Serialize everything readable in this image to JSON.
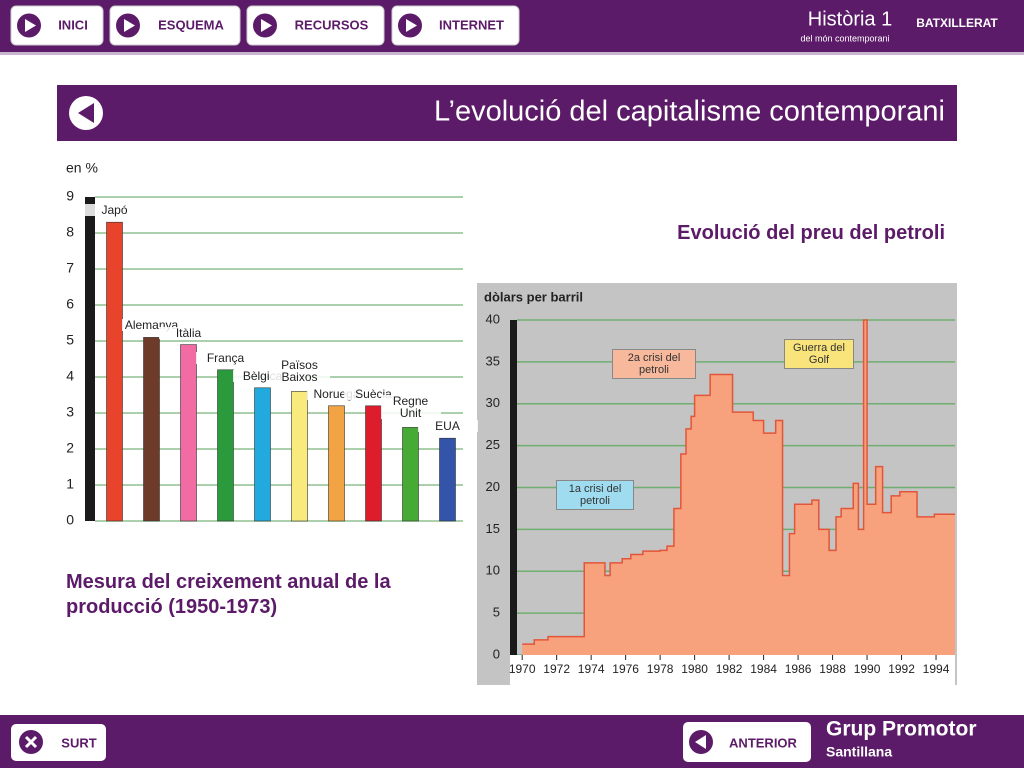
{
  "header": {
    "nav": [
      "INICI",
      "ESQUEMA",
      "RECURSOS",
      "INTERNET"
    ],
    "brand": "Història 1",
    "level": "BATXILLERAT",
    "subtitle": "del món contemporani"
  },
  "page_title": "L’evolució del capitalisme contemporani",
  "footer": {
    "exit": "SURT",
    "previous": "ANTERIOR",
    "publisher": "Grup Promotor",
    "publisher_sub": "Santillana"
  },
  "chart_data": [
    {
      "type": "bar",
      "title": "Mesura del creixement anual de la producció (1950-1973)",
      "y_label": "en %",
      "categories": [
        "Japó",
        "Alemanya",
        "Itàlia",
        "França",
        "Bèlgica",
        "Països Baixos",
        "Noruega",
        "Suècia",
        "Regne Unit",
        "EUA"
      ],
      "values": [
        8.3,
        5.1,
        4.9,
        4.2,
        3.7,
        3.6,
        3.2,
        3.2,
        2.6,
        2.3
      ],
      "colors": [
        "#e8442c",
        "#6e3b2a",
        "#f06ca2",
        "#2a9a3c",
        "#22aade",
        "#f8ea7c",
        "#f2a444",
        "#dd1c2c",
        "#46aa34",
        "#3454aa"
      ],
      "ylim": [
        0,
        9
      ],
      "yticks": [
        0,
        1,
        2,
        3,
        4,
        5,
        6,
        7,
        8,
        9
      ],
      "grid": true
    },
    {
      "type": "area",
      "step": true,
      "title": "Evolució del preu del petroli",
      "y_label": "dòlars per barril",
      "x": [
        1970,
        1970.7,
        1971.5,
        1973.6,
        1974.8,
        1975.1,
        1975.8,
        1976.3,
        1977,
        1978,
        1978.4,
        1978.8,
        1979.2,
        1979.5,
        1979.8,
        1980,
        1980.9,
        1982.2,
        1983.4,
        1984,
        1984.7,
        1985.1,
        1985.5,
        1985.8,
        1986.8,
        1987.2,
        1987.8,
        1988.2,
        1988.5,
        1989.2,
        1989.5,
        1989.8,
        1990,
        1990.5,
        1990.9,
        1991.4,
        1991.9,
        1992.9,
        1993.9
      ],
      "values": [
        1.3,
        1.8,
        2.2,
        11,
        9.5,
        11,
        11.5,
        12,
        12.4,
        12.5,
        13,
        17.5,
        24,
        27,
        28.5,
        31,
        33.5,
        29,
        28,
        26.5,
        28,
        9.5,
        14.5,
        18,
        18.5,
        15,
        12.5,
        16.5,
        17.5,
        20.5,
        15,
        40,
        18,
        22.5,
        17,
        19,
        19.5,
        16.5,
        16.8
      ],
      "color": "#f7a27c",
      "line_color": "#e2553a",
      "xlim": [
        1969.7,
        1995.1
      ],
      "xticks": [
        1970,
        1972,
        1974,
        1976,
        1978,
        1980,
        1982,
        1984,
        1986,
        1988,
        1990,
        1992,
        1994
      ],
      "ylim": [
        0,
        40
      ],
      "yticks": [
        0,
        5,
        10,
        15,
        20,
        25,
        30,
        35,
        40
      ],
      "grid": true,
      "annotations": [
        "1a crisi del petroli",
        "2a crisi del petroli",
        "Guerra del Golf"
      ]
    }
  ]
}
